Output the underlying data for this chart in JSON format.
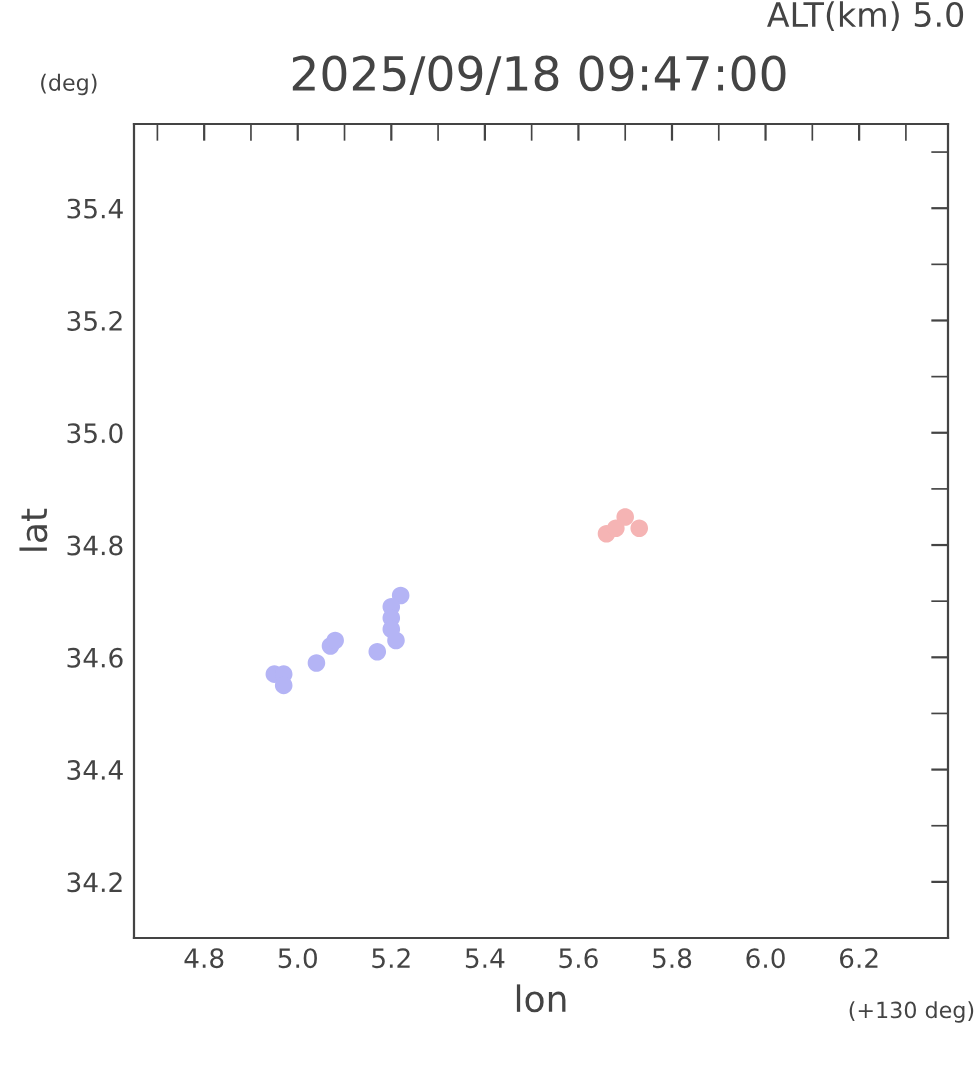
{
  "chart_data": {
    "type": "scatter",
    "title": "2025/09/18 09:47:00",
    "subtitle": "ALT(km) 5.0",
    "xlabel": "lon",
    "ylabel": "lat",
    "annotations": [
      "(deg)",
      "(+130 deg)"
    ],
    "xlim": [
      4.65,
      6.39
    ],
    "xticks": [
      4.8,
      {
        "value": 5,
        "label": "5.0"
      },
      5.2,
      5.4,
      5.6,
      5.8,
      {
        "value": 6,
        "label": "6.0"
      },
      6.2
    ],
    "ylim": [
      34.1,
      35.55
    ],
    "yticks": [
      34.2,
      34.4,
      34.6,
      34.8,
      {
        "value": 35,
        "label": "35.0"
      },
      35.2,
      35.4
    ],
    "grid": false,
    "marker": "circle",
    "series": [
      {
        "color": "#b4b4f5",
        "x": [
          4.95,
          4.97,
          4.97,
          5.07,
          5.08,
          5.04,
          5.22,
          5.2,
          5.2,
          5.2,
          5.17,
          5.21
        ],
        "values": [
          34.57,
          34.57,
          34.55,
          34.62,
          34.63,
          34.59,
          34.71,
          34.69,
          34.67,
          34.65,
          34.61,
          34.63
        ]
      },
      {
        "color": "#f5b4b4",
        "x": [
          5.66,
          5.7,
          5.73,
          5.68
        ],
        "values": [
          34.82,
          34.85,
          34.83,
          34.83
        ]
      }
    ]
  }
}
